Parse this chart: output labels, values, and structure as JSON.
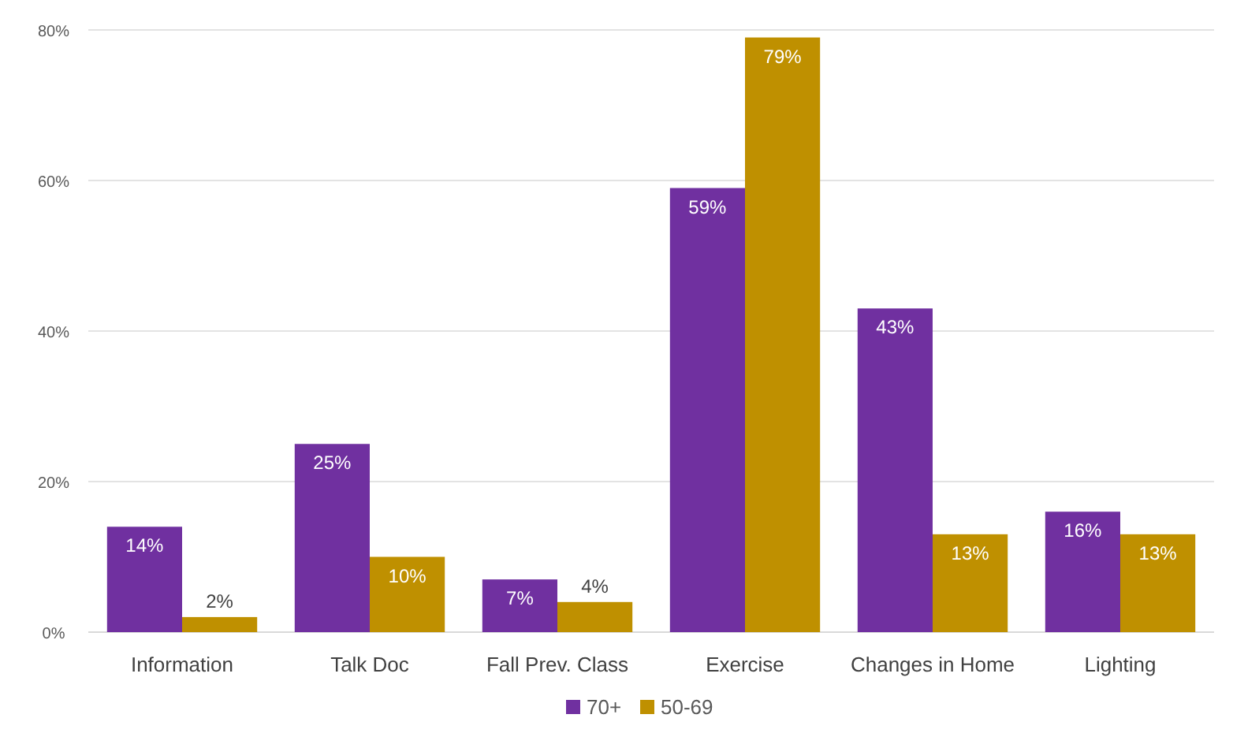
{
  "chart_data": {
    "type": "bar",
    "categories": [
      "Information",
      "Talk Doc",
      "Fall Prev. Class",
      "Exercise",
      "Changes in Home",
      "Lighting"
    ],
    "series": [
      {
        "name": "70+",
        "color": "#7030a0",
        "values": [
          14,
          25,
          7,
          59,
          43,
          16
        ],
        "value_labels": [
          "14%",
          "25%",
          "7%",
          "59%",
          "43%",
          "16%"
        ]
      },
      {
        "name": "50-69",
        "color": "#bf9000",
        "values": [
          2,
          10,
          4,
          79,
          13,
          13
        ],
        "value_labels": [
          "2%",
          "10%",
          "4%",
          "79%",
          "13%",
          "13%"
        ]
      }
    ],
    "ylim": [
      0,
      80
    ],
    "yticks": [
      {
        "value": 0,
        "label": "0%"
      },
      {
        "value": 20,
        "label": "20%"
      },
      {
        "value": 40,
        "label": "40%"
      },
      {
        "value": 60,
        "label": "60%"
      },
      {
        "value": 80,
        "label": "80%"
      }
    ],
    "grid": "y",
    "legend": "bottom"
  }
}
